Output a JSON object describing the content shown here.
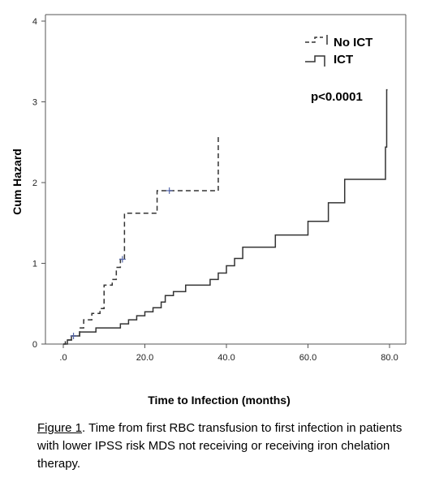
{
  "chart_data": {
    "type": "line",
    "xlabel": "Time to Infection (months)",
    "ylabel": "Cum Hazard",
    "xlim": [
      0,
      80
    ],
    "ylim": [
      0,
      4
    ],
    "x_ticks": [
      0,
      20,
      40,
      60,
      80
    ],
    "x_tick_labels": [
      ".0",
      "20.0",
      "40.0",
      "60.0",
      "80.0"
    ],
    "y_ticks": [
      0,
      1,
      2,
      3,
      4
    ],
    "y_tick_labels": [
      "0",
      "1",
      "2",
      "3",
      "4"
    ],
    "grid": false,
    "legend_position": "top-right",
    "annotation": "p<0.0001",
    "series": [
      {
        "name": "No ICT",
        "style": "dashed",
        "color": "#333333",
        "steps": [
          [
            0,
            0
          ],
          [
            0.5,
            0.05
          ],
          [
            2,
            0.1
          ],
          [
            4,
            0.2
          ],
          [
            5,
            0.3
          ],
          [
            7,
            0.38
          ],
          [
            9,
            0.44
          ],
          [
            10,
            0.73
          ],
          [
            12,
            0.8
          ],
          [
            13,
            0.95
          ],
          [
            14,
            1.05
          ],
          [
            15,
            1.62
          ],
          [
            23,
            1.9
          ],
          [
            38,
            2.6
          ]
        ],
        "censored": [
          [
            14.5,
            1.05
          ],
          [
            26,
            1.9
          ]
        ]
      },
      {
        "name": "ICT",
        "style": "solid",
        "color": "#333333",
        "steps": [
          [
            0,
            0
          ],
          [
            1,
            0.05
          ],
          [
            2,
            0.1
          ],
          [
            4,
            0.15
          ],
          [
            8,
            0.2
          ],
          [
            14,
            0.25
          ],
          [
            16,
            0.3
          ],
          [
            18,
            0.35
          ],
          [
            20,
            0.4
          ],
          [
            22,
            0.45
          ],
          [
            24,
            0.52
          ],
          [
            25,
            0.6
          ],
          [
            27,
            0.65
          ],
          [
            30,
            0.73
          ],
          [
            36,
            0.8
          ],
          [
            38,
            0.88
          ],
          [
            40,
            0.97
          ],
          [
            42,
            1.06
          ],
          [
            44,
            1.2
          ],
          [
            52,
            1.35
          ],
          [
            60,
            1.52
          ],
          [
            65,
            1.75
          ],
          [
            69,
            2.04
          ],
          [
            79,
            2.44
          ],
          [
            79.3,
            3.15
          ]
        ],
        "end_x": 79.5,
        "censored": [
          [
            2.5,
            0.1
          ]
        ]
      }
    ]
  },
  "caption": {
    "label": "Figure 1",
    "text": ".  Time from first RBC transfusion to first infection in patients with lower IPSS risk MDS not receiving or receiving iron chelation therapy."
  },
  "colors": {
    "censor_mark": "#5566aa"
  }
}
